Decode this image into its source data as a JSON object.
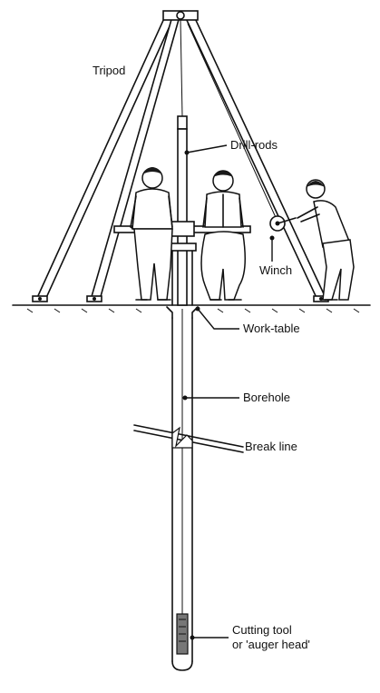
{
  "labels": {
    "tripod": "Tripod",
    "drill_rods": "Drill-rods",
    "winch": "Winch",
    "work_table": "Work-table",
    "borehole": "Borehole",
    "break_line": "Break line",
    "cutting_tool_line1": "Cutting tool",
    "cutting_tool_line2": "or 'auger head'"
  },
  "colors": {
    "ink": "#111111",
    "background": "#ffffff"
  }
}
